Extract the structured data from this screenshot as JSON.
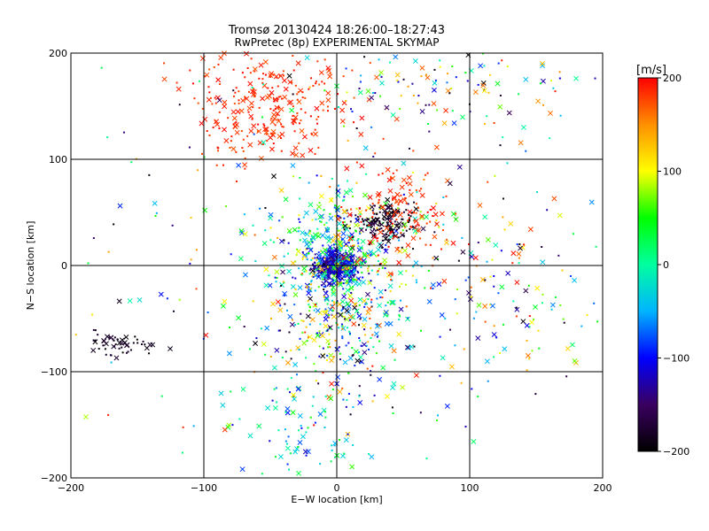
{
  "chart_data": {
    "type": "scatter",
    "title": "Tromsø 20130424 18:26:00–18:27:43",
    "subtitle": "RwPretec (8p) EXPERIMENTAL SKYMAP",
    "xlabel": "E−W location [km]",
    "ylabel": "N−S location [km]",
    "xlim": [
      -200,
      200
    ],
    "ylim": [
      -200,
      200
    ],
    "xticks": [
      -200,
      -100,
      0,
      100,
      200
    ],
    "yticks": [
      -200,
      -100,
      0,
      100,
      200
    ],
    "xtick_labels": [
      "−200",
      "−100",
      "0",
      "100",
      "200"
    ],
    "ytick_labels": [
      "−200",
      "−100",
      "0",
      "100",
      "200"
    ],
    "grid": true,
    "marker_styles": [
      "dot",
      "cross"
    ],
    "colorbar": {
      "label": "[m/s]",
      "range": [
        -200,
        200
      ],
      "ticks": [
        200,
        100,
        0,
        -100,
        -200
      ],
      "tick_labels": [
        "200",
        "100",
        "0",
        "−100",
        "−200"
      ],
      "colormap": "rainbow",
      "colors": [
        "#000000",
        "#3a0060",
        "#0000ff",
        "#00b4ff",
        "#00ffa0",
        "#00ff00",
        "#ffff00",
        "#ff9000",
        "#ff0000"
      ]
    },
    "clusters": [
      {
        "cx": 0,
        "cy": 0,
        "sx": 8,
        "sy": 7,
        "n": 420,
        "vmin": -150,
        "vmax": -80
      },
      {
        "cx": 0,
        "cy": 5,
        "sx": 25,
        "sy": 35,
        "n": 450,
        "vmin": -120,
        "vmax": 140
      },
      {
        "cx": 35,
        "cy": 40,
        "sx": 12,
        "sy": 10,
        "n": 160,
        "vmin": -200,
        "vmax": -160
      },
      {
        "cx": 45,
        "cy": 45,
        "sx": 20,
        "sy": 25,
        "n": 140,
        "vmin": 170,
        "vmax": 200
      },
      {
        "cx": -50,
        "cy": 150,
        "sx": 30,
        "sy": 30,
        "n": 280,
        "vmin": 170,
        "vmax": 200
      },
      {
        "cx": 5,
        "cy": -60,
        "sx": 25,
        "sy": 35,
        "n": 220,
        "vmin": -200,
        "vmax": 200
      },
      {
        "cx": -165,
        "cy": -75,
        "sx": 12,
        "sy": 6,
        "n": 55,
        "vmin": -200,
        "vmax": -170
      },
      {
        "cx": -30,
        "cy": -150,
        "sx": 25,
        "sy": 25,
        "n": 80,
        "vmin": -120,
        "vmax": 60
      },
      {
        "cx": 80,
        "cy": 170,
        "sx": 50,
        "sy": 25,
        "n": 130,
        "vmin": -200,
        "vmax": 200
      },
      {
        "cx": 130,
        "cy": -30,
        "sx": 50,
        "sy": 40,
        "n": 110,
        "vmin": -200,
        "vmax": 200
      },
      {
        "cx": 0,
        "cy": 0,
        "sx": 110,
        "sy": 110,
        "n": 300,
        "vmin": -200,
        "vmax": 200
      }
    ]
  }
}
